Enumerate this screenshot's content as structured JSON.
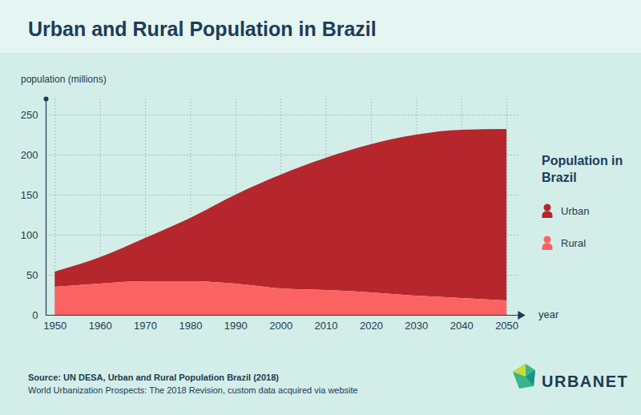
{
  "chart_data": {
    "type": "area",
    "title": "Urban and Rural Population in Brazil",
    "y_label": "population (millions)",
    "x_label": "year",
    "legend_title": "Population in Brazil",
    "x": [
      1950,
      1960,
      1970,
      1980,
      1990,
      2000,
      2010,
      2020,
      2030,
      2040,
      2050
    ],
    "series": [
      {
        "name": "Urban",
        "color": "#b5272d",
        "values": [
          19,
          33,
          54,
          79,
          111,
          142,
          165,
          185,
          201,
          210,
          214
        ]
      },
      {
        "name": "Rural",
        "color": "#fb6363",
        "values": [
          35,
          39,
          42,
          42,
          39,
          33,
          31,
          28,
          24,
          21,
          18
        ]
      }
    ],
    "xlim": [
      1948,
      2053
    ],
    "ylim": [
      0,
      270
    ],
    "xticks": [
      1950,
      1960,
      1970,
      1980,
      1990,
      2000,
      2010,
      2020,
      2030,
      2040,
      2050
    ],
    "yticks": [
      0,
      50,
      100,
      150,
      200,
      250
    ],
    "grid": true,
    "stacked": true,
    "legend": "right",
    "source": [
      "Source: UN DESA, Urban and Rural Population Brazil (2018)",
      "World Urbanization Prospects: The 2018 Revision, custom data acquired via website"
    ],
    "logo": "URBANET"
  }
}
